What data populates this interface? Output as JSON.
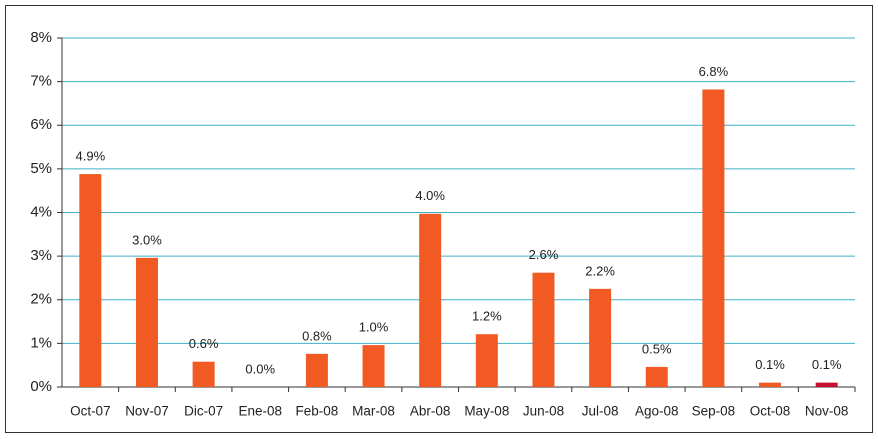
{
  "chart_data": {
    "type": "bar",
    "categories": [
      "Oct-07",
      "Nov-07",
      "Dic-07",
      "Ene-08",
      "Feb-08",
      "Mar-08",
      "Abr-08",
      "May-08",
      "Jun-08",
      "Jul-08",
      "Ago-08",
      "Sep-08",
      "Oct-08",
      "Nov-08"
    ],
    "values": [
      4.88,
      2.96,
      0.58,
      0,
      0.76,
      0.96,
      3.97,
      1.21,
      2.62,
      2.25,
      0.46,
      6.82,
      0.1,
      0.1
    ],
    "value_labels": [
      "4.9%",
      "3.0%",
      "0.6%",
      "0.0%",
      "0.8%",
      "1.0%",
      "4.0%",
      "1.2%",
      "2.6%",
      "2.2%",
      "0.5%",
      "6.8%",
      "0.1%",
      "0.1%"
    ],
    "colors": [
      "#f15a22",
      "#f15a22",
      "#f15a22",
      "#f15a22",
      "#f15a22",
      "#f15a22",
      "#f15a22",
      "#f15a22",
      "#f15a22",
      "#f15a22",
      "#f15a22",
      "#f15a22",
      "#f15a22",
      "#c8102e"
    ],
    "ylim": [
      0,
      8
    ],
    "yticks": [
      {
        "value": 0,
        "label": "0%"
      },
      {
        "value": 1,
        "label": "1%"
      },
      {
        "value": 2,
        "label": "2%"
      },
      {
        "value": 3,
        "label": "3%"
      },
      {
        "value": 4,
        "label": "4%"
      },
      {
        "value": 5,
        "label": "5%"
      },
      {
        "value": 6,
        "label": "6%"
      },
      {
        "value": 7,
        "label": "7%"
      },
      {
        "value": 8,
        "label": "8%"
      }
    ],
    "grid": true
  }
}
